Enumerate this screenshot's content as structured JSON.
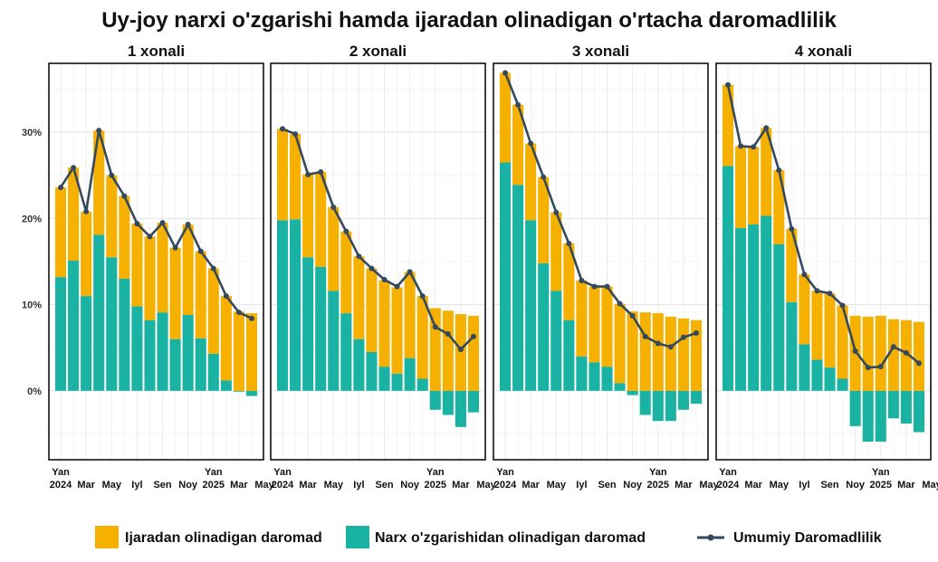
{
  "chart_data": {
    "type": "bar",
    "title": "Uy-joy narxi o'zgarishi hamda ijaradan olinadigan o'rtacha daromadlilik",
    "xlabel": "",
    "ylabel": "",
    "ylim": [
      -8,
      38
    ],
    "yticks": [
      0,
      10,
      20,
      30
    ],
    "ytick_labels": [
      "0%",
      "10%",
      "20%",
      "30%"
    ],
    "grid": true,
    "legend_position": "bottom",
    "x_tick_labels": [
      {
        "index": 0,
        "line1": "Yan",
        "line2": "2024"
      },
      {
        "index": 2,
        "line1": "",
        "line2": "Mar"
      },
      {
        "index": 4,
        "line1": "",
        "line2": "May"
      },
      {
        "index": 6,
        "line1": "",
        "line2": "Iyl"
      },
      {
        "index": 8,
        "line1": "",
        "line2": "Sen"
      },
      {
        "index": 10,
        "line1": "",
        "line2": "Noy"
      },
      {
        "index": 12,
        "line1": "Yan",
        "line2": "2025"
      },
      {
        "index": 14,
        "line1": "",
        "line2": "Mar"
      },
      {
        "index": 16,
        "line1": "",
        "line2": "May"
      }
    ],
    "legend": [
      {
        "label": "Ijaradan olinadigan daromad",
        "color": "#F5B000",
        "kind": "bar"
      },
      {
        "label": "Narx o'zgarishidan olinadigan daromad",
        "color": "#1AB3A3",
        "kind": "bar"
      },
      {
        "label": "Umumiy Daromadlilik",
        "color": "#34495E",
        "kind": "line"
      }
    ],
    "colors": {
      "rent": "#F5B000",
      "price": "#1AB3A3",
      "total": "#34495E"
    },
    "facets": [
      {
        "title": "1 xonali",
        "series": [
          {
            "name": "Narx o'zgarishidan olinadigan daromad",
            "values": [
              13.2,
              15.1,
              11.0,
              18.1,
              15.5,
              13.0,
              9.8,
              8.2,
              9.1,
              6.0,
              8.8,
              6.1,
              4.3,
              1.2,
              -0.1,
              -0.6
            ]
          },
          {
            "name": "Ijaradan olinadigan daromad",
            "values": [
              10.4,
              10.8,
              9.8,
              12.1,
              9.5,
              9.6,
              9.6,
              9.7,
              10.4,
              10.6,
              10.5,
              10.1,
              9.9,
              9.8,
              9.2,
              9.0
            ]
          },
          {
            "name": "Umumiy Daromadlilik",
            "values": [
              23.6,
              25.9,
              20.8,
              30.2,
              25.0,
              22.6,
              19.4,
              17.9,
              19.5,
              16.6,
              19.3,
              16.2,
              14.2,
              11.0,
              9.1,
              8.4
            ]
          }
        ]
      },
      {
        "title": "2 xonali",
        "series": [
          {
            "name": "Narx o'zgarishidan olinadigan daromad",
            "values": [
              19.8,
              19.9,
              15.5,
              14.4,
              11.6,
              9.0,
              6.0,
              4.5,
              2.8,
              2.0,
              3.8,
              1.4,
              -2.2,
              -2.8,
              -4.2,
              -2.5
            ]
          },
          {
            "name": "Ijaradan olinadigan daromad",
            "values": [
              10.6,
              9.9,
              9.6,
              11.0,
              9.7,
              9.5,
              9.6,
              9.7,
              10.0,
              10.0,
              10.0,
              9.6,
              9.6,
              9.3,
              8.9,
              8.7
            ]
          },
          {
            "name": "Umumiy Daromadlilik",
            "values": [
              30.4,
              29.8,
              25.1,
              25.4,
              21.3,
              18.5,
              15.6,
              14.2,
              12.9,
              12.1,
              13.8,
              11.0,
              7.4,
              6.6,
              4.8,
              6.3
            ]
          }
        ]
      },
      {
        "title": "3 xonali",
        "series": [
          {
            "name": "Narx o'zgarishidan olinadigan daromad",
            "values": [
              26.5,
              23.9,
              19.8,
              14.8,
              11.6,
              8.2,
              4.0,
              3.3,
              2.8,
              0.9,
              -0.5,
              -2.8,
              -3.5,
              -3.5,
              -2.2,
              -1.5
            ]
          },
          {
            "name": "Ijaradan olinadigan daromad",
            "values": [
              10.4,
              9.3,
              8.9,
              10.0,
              9.1,
              8.9,
              8.8,
              8.8,
              9.3,
              9.2,
              9.2,
              9.1,
              9.0,
              8.6,
              8.4,
              8.2
            ]
          },
          {
            "name": "Umumiy Daromadlilik",
            "values": [
              36.9,
              33.2,
              28.7,
              24.8,
              20.7,
              17.1,
              12.8,
              12.1,
              12.1,
              10.1,
              8.7,
              6.3,
              5.5,
              5.1,
              6.2,
              6.7
            ]
          }
        ]
      },
      {
        "title": "4 xonali",
        "series": [
          {
            "name": "Narx o'zgarishidan olinadigan daromad",
            "values": [
              26.1,
              18.9,
              19.3,
              20.3,
              17.0,
              10.3,
              5.4,
              3.6,
              2.7,
              1.4,
              -4.1,
              -5.9,
              -5.9,
              -3.2,
              -3.8,
              -4.8
            ]
          },
          {
            "name": "Ijaradan olinadigan daromad",
            "values": [
              9.4,
              9.5,
              9.0,
              10.2,
              8.6,
              8.5,
              8.1,
              8.0,
              8.6,
              8.5,
              8.7,
              8.6,
              8.7,
              8.3,
              8.2,
              8.0
            ]
          },
          {
            "name": "Umumiy Daromadlilik",
            "values": [
              35.5,
              28.4,
              28.3,
              30.5,
              25.6,
              18.8,
              13.5,
              11.6,
              11.3,
              9.9,
              4.6,
              2.7,
              2.8,
              5.1,
              4.4,
              3.2
            ]
          }
        ]
      }
    ]
  }
}
